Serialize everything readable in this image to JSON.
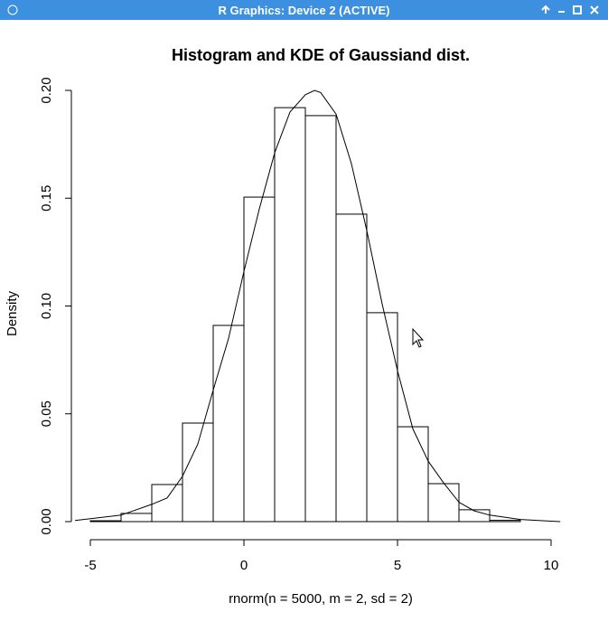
{
  "window": {
    "title": "R Graphics: Device 2 (ACTIVE)"
  },
  "chart_data": {
    "type": "histogram",
    "title": "Histogram and KDE of Gaussiand dist.",
    "x_label": "rnorm(n = 5000, m = 2, sd = 2)",
    "y_label": "Density",
    "bins": [
      -5,
      -4,
      -3,
      -2,
      -1,
      0,
      1,
      2,
      3,
      4,
      5,
      6,
      7,
      8,
      9
    ],
    "values": [
      0.0004,
      0.0038,
      0.0172,
      0.0457,
      0.091,
      0.1505,
      0.192,
      0.1883,
      0.1426,
      0.0969,
      0.044,
      0.0176,
      0.0055,
      0.0006
    ],
    "bar_fill": "#ffffff",
    "line_color": "#000000",
    "kde": {
      "x": [
        -5.5,
        -4,
        -3,
        -2.5,
        -2,
        -1.5,
        -1,
        -0.5,
        0,
        0.5,
        1,
        1.5,
        2,
        2.3,
        2.5,
        3,
        3.5,
        4,
        4.5,
        5,
        5.5,
        6,
        6.5,
        7,
        7.5,
        8,
        9,
        10,
        10.3
      ],
      "values": [
        0.0005,
        0.003,
        0.008,
        0.011,
        0.021,
        0.036,
        0.061,
        0.085,
        0.116,
        0.145,
        0.171,
        0.19,
        0.198,
        0.2,
        0.199,
        0.189,
        0.166,
        0.135,
        0.101,
        0.07,
        0.043,
        0.028,
        0.018,
        0.009,
        0.005,
        0.003,
        0.001,
        0.0002,
        0
      ]
    },
    "xlim": [
      -5,
      10
    ],
    "xticks": [
      -5,
      0,
      5,
      10
    ],
    "ylim": [
      0,
      0.2
    ],
    "yticks": [
      {
        "value": 0,
        "label": "0.00"
      },
      0.05,
      {
        "value": 0.1,
        "label": "0.10"
      },
      0.15,
      {
        "value": 0.2,
        "label": "0.20"
      }
    ]
  }
}
